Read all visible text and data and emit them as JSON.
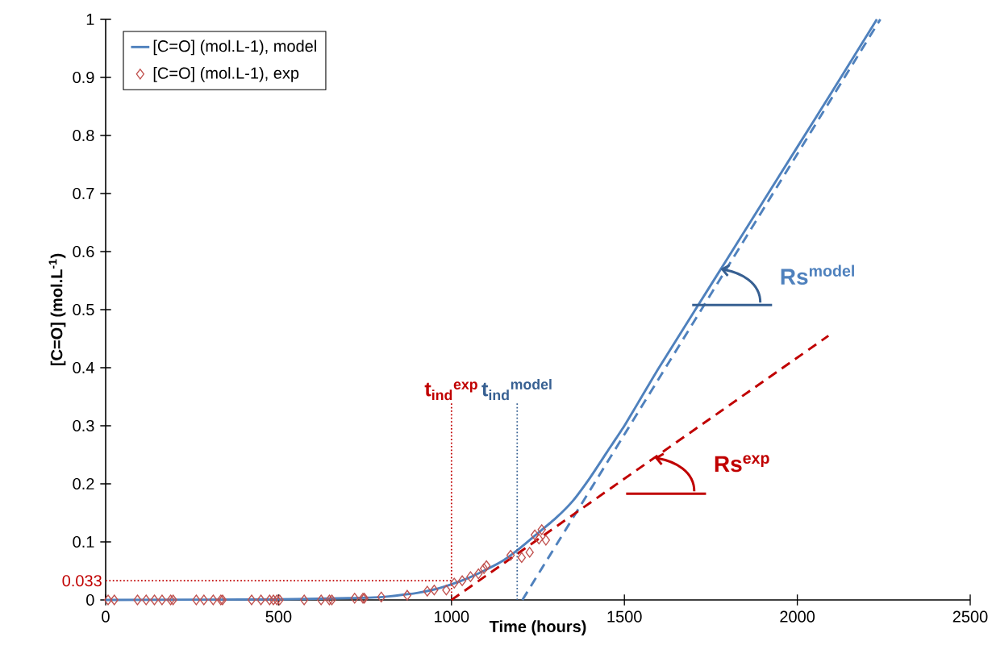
{
  "chart_data": {
    "type": "line",
    "xlabel": "Time (hours)",
    "ylabel": "[C=O] (mol.L$^{-1}$)",
    "xlim": [
      0,
      2500
    ],
    "ylim": [
      0,
      1
    ],
    "xticks": [
      0,
      500,
      1000,
      1500,
      2000,
      2500
    ],
    "yticks": [
      0,
      0.1,
      0.2,
      0.3,
      0.4,
      0.5,
      0.6,
      0.7,
      0.8,
      0.9,
      1
    ],
    "grid": false,
    "legend": "top left",
    "series": [
      {
        "name": "[C=O] (mol.L-1), model",
        "type": "line",
        "color": "#4f81bd",
        "x": [
          0,
          500,
          700,
          800,
          900,
          950,
          1000,
          1050,
          1100,
          1150,
          1200,
          1250,
          1300,
          1350,
          1400,
          1450,
          1500,
          1550,
          1600,
          1700,
          1800,
          1900,
          2000,
          2100,
          2230
        ],
        "values": [
          0,
          0.001,
          0.003,
          0.005,
          0.012,
          0.018,
          0.027,
          0.038,
          0.052,
          0.068,
          0.09,
          0.115,
          0.14,
          0.17,
          0.21,
          0.255,
          0.3,
          0.35,
          0.4,
          0.495,
          0.59,
          0.685,
          0.78,
          0.875,
          1.0
        ]
      },
      {
        "name": "[C=O] (mol.L-1), exp",
        "type": "scatter",
        "marker": "diamond",
        "color": "#c0504d",
        "x": [
          7,
          25,
          92,
          117,
          141,
          163,
          188,
          195,
          262,
          284,
          311,
          333,
          338,
          422,
          449,
          474,
          485,
          495,
          503,
          574,
          623,
          647,
          654,
          720,
          744,
          748,
          797,
          872,
          930,
          950,
          985,
          1008,
          1031,
          1055,
          1078,
          1094,
          1101,
          1171,
          1203,
          1226,
          1241,
          1253,
          1261,
          1273
        ],
        "values": [
          0,
          0,
          0,
          0,
          0,
          0,
          0,
          0,
          0,
          0,
          0,
          0,
          0,
          0,
          0,
          0,
          0,
          0,
          0,
          0,
          0,
          0,
          0,
          0.003,
          0.003,
          0.003,
          0.005,
          0.008,
          0.015,
          0.017,
          0.017,
          0.029,
          0.033,
          0.04,
          0.045,
          0.054,
          0.059,
          0.077,
          0.073,
          0.082,
          0.112,
          0.105,
          0.121,
          0.103
        ]
      },
      {
        "type": "line",
        "line_style": "dashed",
        "color": "#4f81bd",
        "x": [
          1205,
          2240
        ],
        "values": [
          0,
          1
        ]
      },
      {
        "type": "line",
        "line_style": "dashed",
        "color": "#c00000",
        "x": [
          1000,
          2090
        ],
        "values": [
          0,
          0.455
        ]
      }
    ],
    "ref_lines": [
      {
        "axis": "x",
        "value": 1000,
        "label": "t$_{ind}$$^{exp}$",
        "color": "#c00000",
        "line_style": "dotted"
      },
      {
        "axis": "x",
        "value": 1190,
        "label": "t$_{ind}$$^{model}$",
        "color": "#376092",
        "line_style": "dotted"
      },
      {
        "axis": "y",
        "value": 0.033,
        "label": "0.033",
        "color": "#c00000",
        "line_style": "dotted"
      }
    ],
    "annotations": [
      {
        "text": "Rs$^{model}$",
        "x": 1778,
        "y": 0.57
      },
      {
        "text": "Rs$^{exp}$",
        "x": 1587,
        "y": 0.245
      }
    ]
  }
}
